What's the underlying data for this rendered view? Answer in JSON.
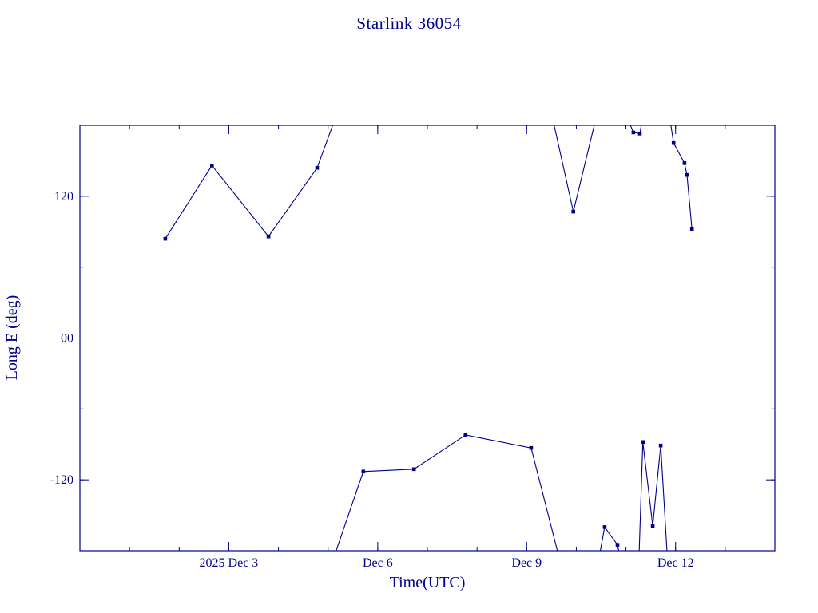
{
  "colors": {
    "ink": "#00008b",
    "background": "#ffffff"
  },
  "chart_data": {
    "type": "line",
    "title": "Starlink 36054",
    "xlabel": "Time(UTC)",
    "ylabel": "Long E (deg)",
    "x_axis_note": "x values are days of December 2025 UTC (Dec 3 00:00 = 3.0)",
    "xlim": [
      0,
      14
    ],
    "ylim": [
      -180,
      180
    ],
    "grid": false,
    "legend": null,
    "line_color": "#00008b",
    "marker": "square",
    "x_ticks": [
      {
        "value": 3,
        "label": "2025 Dec 3"
      },
      {
        "value": 6,
        "label": "Dec 6"
      },
      {
        "value": 9,
        "label": "Dec 9"
      },
      {
        "value": 12,
        "label": "Dec 12"
      }
    ],
    "x_minor_step": 1,
    "y_ticks": [
      {
        "value": 120,
        "label": "120"
      },
      {
        "value": 0,
        "label": "00"
      },
      {
        "value": -120,
        "label": "-120"
      }
    ],
    "y_minor_step": 60,
    "segments": [
      {
        "name": "seg-1-upper-left",
        "points": [
          [
            1.72,
            84,
            1
          ],
          [
            2.66,
            146,
            1
          ],
          [
            3.8,
            86,
            1
          ],
          [
            4.78,
            144,
            1
          ],
          [
            5.18,
            190,
            0
          ]
        ]
      },
      {
        "name": "seg-2-lower-main",
        "points": [
          [
            5.08,
            -190,
            0
          ],
          [
            5.71,
            -113,
            1
          ],
          [
            6.73,
            -111,
            1
          ],
          [
            7.77,
            -82,
            1
          ],
          [
            9.09,
            -93,
            1
          ],
          [
            9.68,
            -190,
            0
          ]
        ]
      },
      {
        "name": "seg-3-top-dip",
        "points": [
          [
            9.5,
            190,
            0
          ],
          [
            9.94,
            107,
            1
          ],
          [
            10.42,
            190,
            0
          ]
        ]
      },
      {
        "name": "seg-4-bottom-spike",
        "points": [
          [
            10.44,
            -190,
            0
          ],
          [
            10.57,
            -160,
            1
          ],
          [
            10.83,
            -175,
            1
          ],
          [
            10.91,
            -190,
            0
          ]
        ]
      },
      {
        "name": "seg-5-top-pair",
        "points": [
          [
            10.99,
            190,
            0
          ],
          [
            11.15,
            174,
            1
          ],
          [
            11.28,
            173,
            1
          ],
          [
            11.35,
            190,
            0
          ]
        ]
      },
      {
        "name": "seg-6-bottom-zigzag",
        "points": [
          [
            11.26,
            -190,
            0
          ],
          [
            11.34,
            -88,
            1
          ],
          [
            11.54,
            -159,
            1
          ],
          [
            11.7,
            -91,
            1
          ],
          [
            11.84,
            -190,
            0
          ]
        ]
      },
      {
        "name": "seg-7-top-right-descent",
        "points": [
          [
            11.87,
            190,
            0
          ],
          [
            11.96,
            165,
            1
          ],
          [
            12.18,
            148,
            1
          ],
          [
            12.23,
            138,
            1
          ],
          [
            12.33,
            92,
            1
          ]
        ]
      }
    ]
  }
}
